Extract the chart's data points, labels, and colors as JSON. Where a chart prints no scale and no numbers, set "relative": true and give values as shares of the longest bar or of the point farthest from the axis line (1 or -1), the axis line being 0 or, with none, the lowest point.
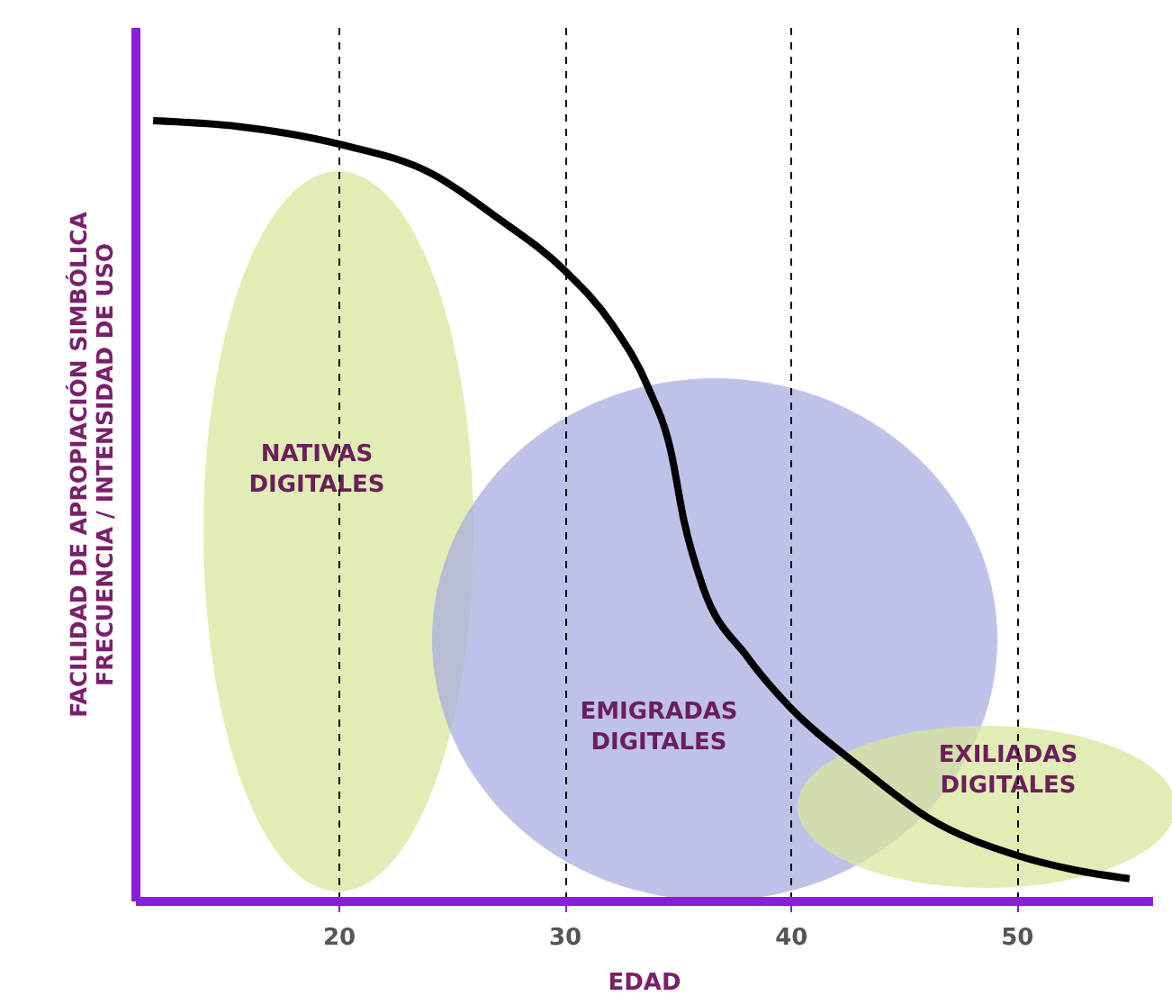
{
  "chart_data": {
    "type": "line",
    "relative": true,
    "xlabel": "EDAD",
    "ylabel": "FACILIDAD DE APROPIACIÓN SIMBÓLICA\nFRECUENCIA / INTENSIDAD DE USO",
    "x": [
      11.8,
      15.4,
      20,
      24.2,
      26.9,
      30,
      32.1,
      33.7,
      34.7,
      35.3,
      36.1,
      38.1,
      40,
      43,
      46.2,
      50,
      52.6,
      55
    ],
    "series": [
      {
        "color": "#000000",
        "values": [
          1.0,
          0.993,
          0.97,
          0.931,
          0.878,
          0.808,
          0.739,
          0.658,
          0.577,
          0.485,
          0.404,
          0.312,
          0.247,
          0.173,
          0.104,
          0.058,
          0.039,
          0.028
        ]
      }
    ],
    "xlim": [
      11,
      56
    ],
    "xticks": [
      20,
      30,
      40,
      50
    ],
    "grid": "x",
    "line_style": "solid",
    "annotations": [
      "NATIVAS\nDIGITALES",
      "EMIGRADAS\nDIGITALES",
      "EXILIADAS\nDIGITALES"
    ]
  }
}
